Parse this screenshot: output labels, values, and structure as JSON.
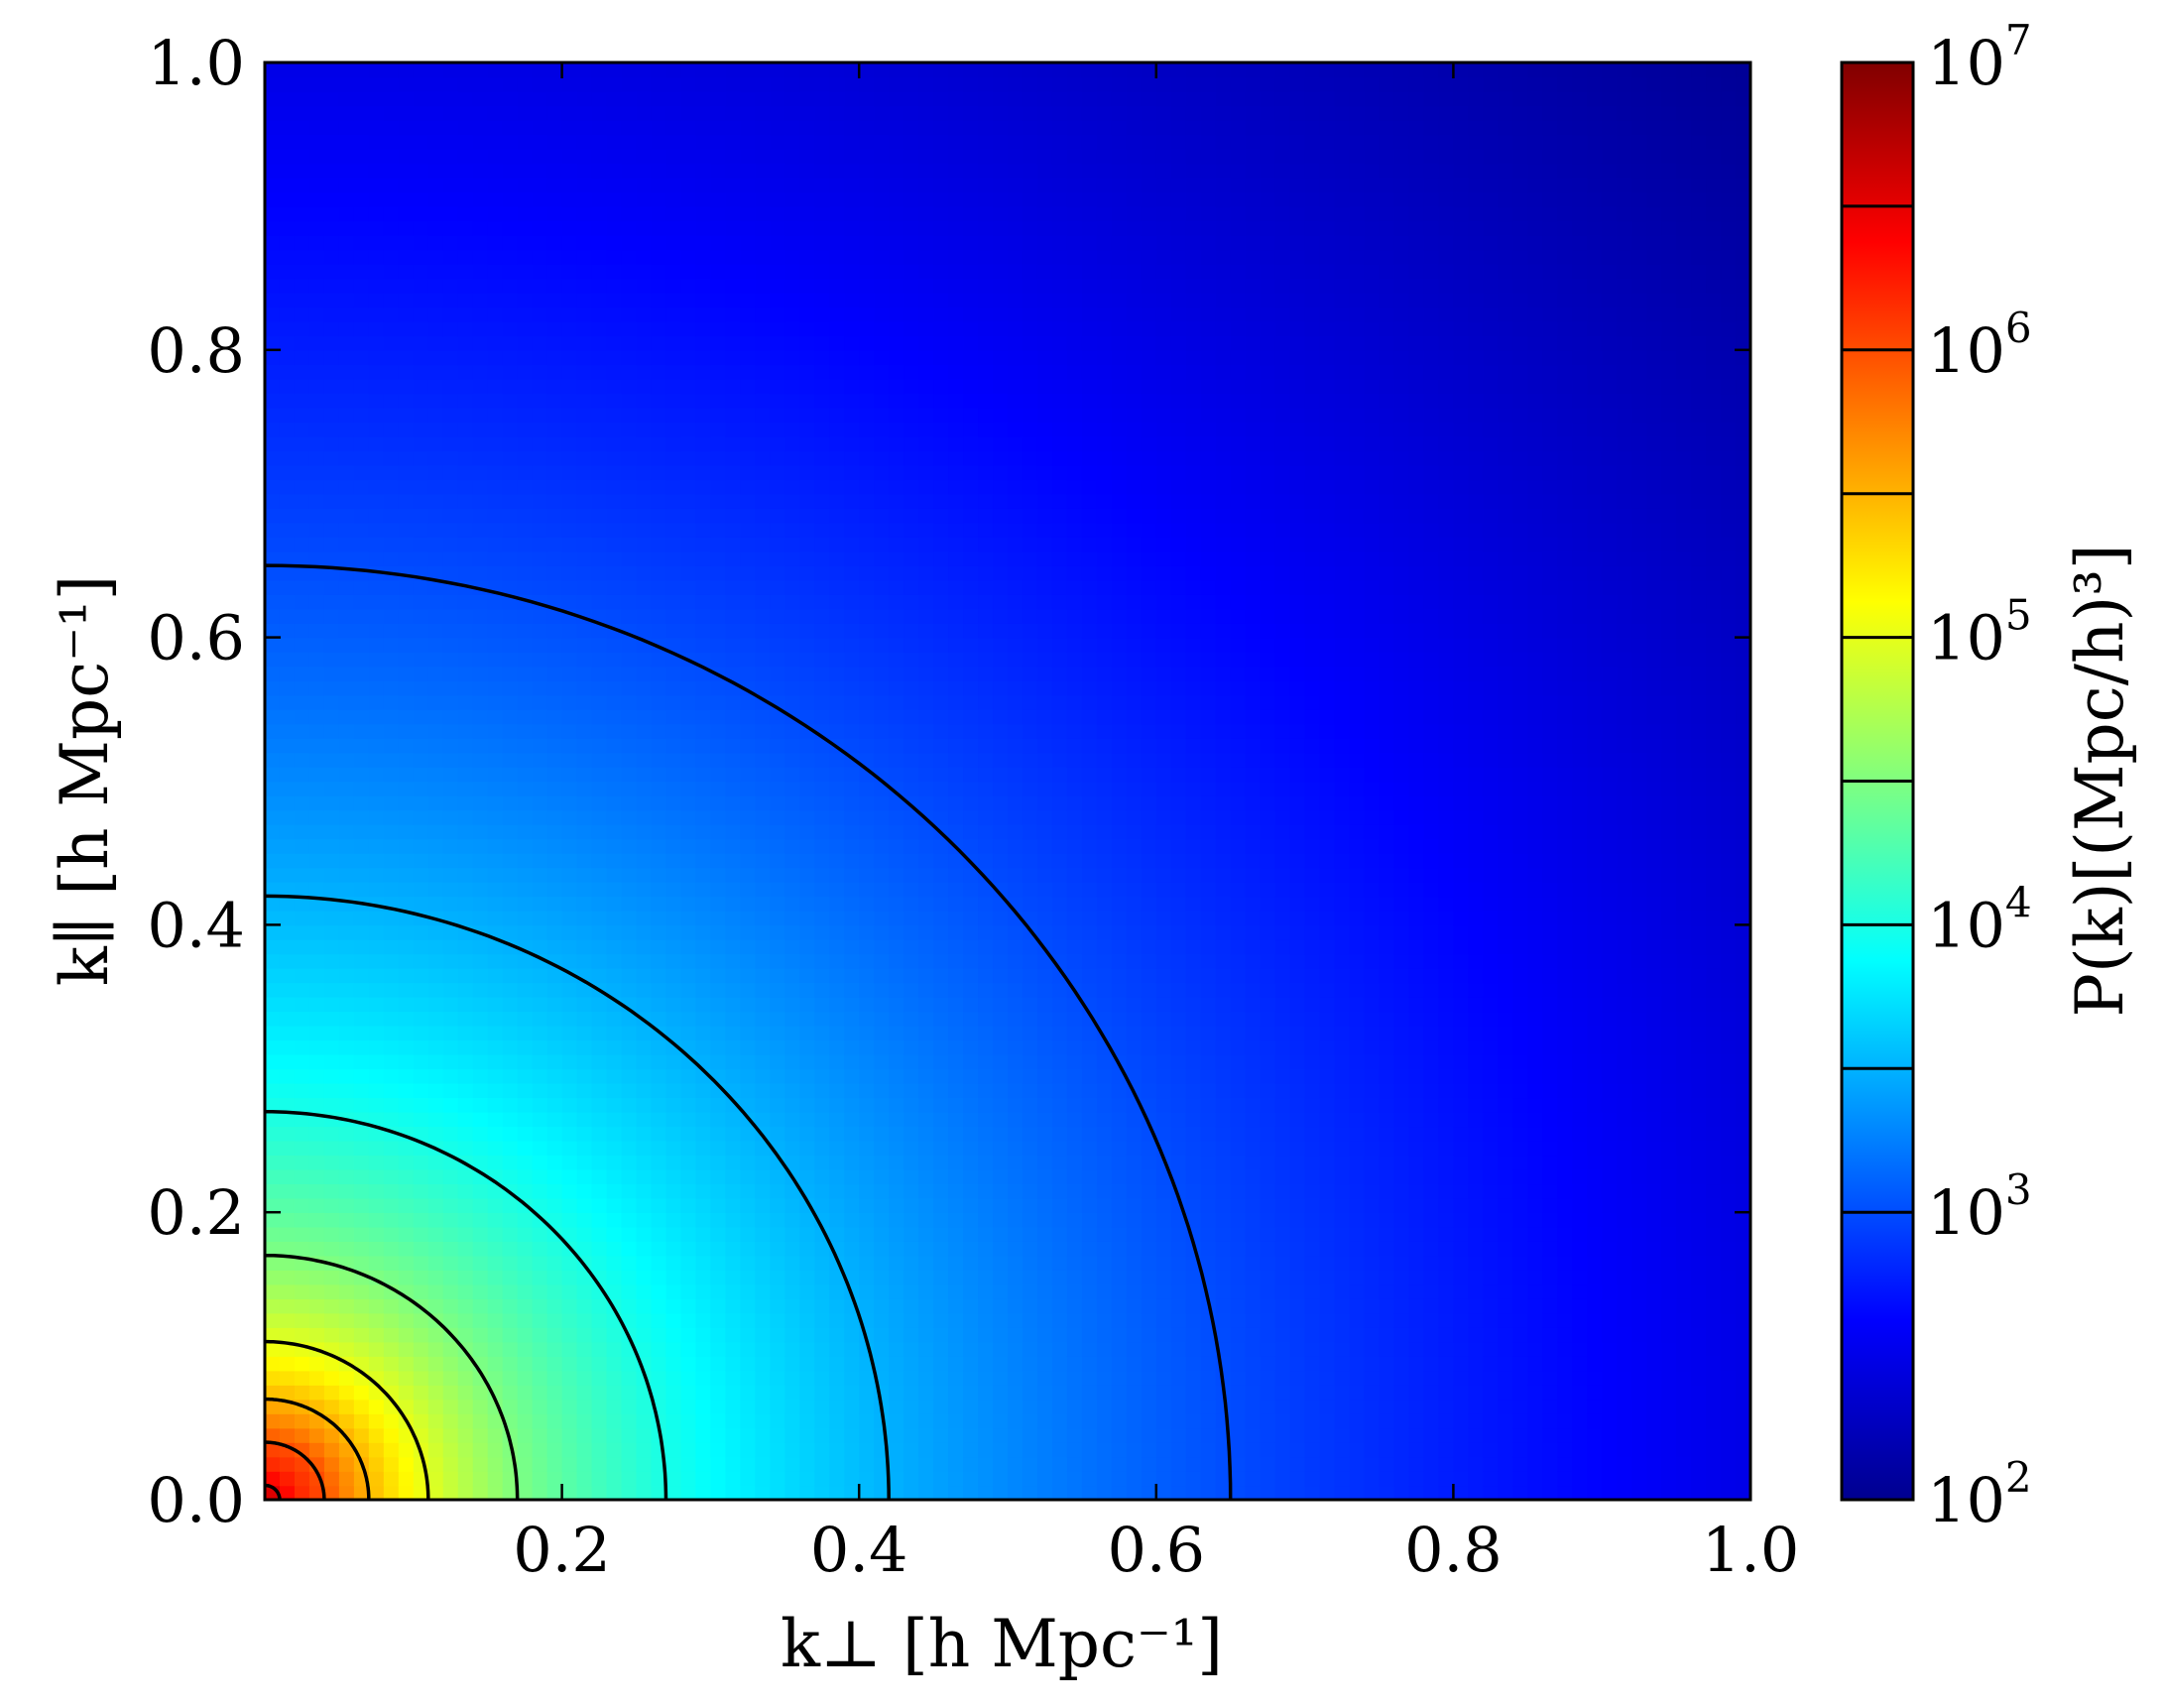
{
  "chart_data": {
    "type": "heatmap",
    "title": "",
    "xlabel": "k⊥ [h Mpc⁻¹]",
    "ylabel": "k∥ [h Mpc⁻¹]",
    "colorbar_label": "P(k)[(Mpc/h)³]",
    "xlim": [
      0.0,
      1.0
    ],
    "ylim": [
      0.0,
      1.0
    ],
    "x_ticks": [
      "0.2",
      "0.4",
      "0.6",
      "0.8",
      "1.0"
    ],
    "y_ticks": [
      "0.0",
      "0.2",
      "0.4",
      "0.6",
      "0.8",
      "1.0"
    ],
    "colorbar_scale": "log",
    "colorbar_range": [
      100,
      10000000
    ],
    "colorbar_ticks": [
      {
        "value": 100,
        "base": "10",
        "exp": "2"
      },
      {
        "value": 1000,
        "base": "10",
        "exp": "3"
      },
      {
        "value": 10000,
        "base": "10",
        "exp": "4"
      },
      {
        "value": 100000,
        "base": "10",
        "exp": "5"
      },
      {
        "value": 1000000,
        "base": "10",
        "exp": "6"
      },
      {
        "value": 10000000,
        "base": "10",
        "exp": "7"
      }
    ],
    "colormap": "jet",
    "grid": false,
    "contour_levels": [
      1000,
      3162,
      10000,
      31623,
      100000,
      316228,
      1000000,
      3162278
    ],
    "contour_radius_at_ky0": [
      0.65,
      0.42,
      0.27,
      0.17,
      0.11,
      0.07,
      0.04,
      0.01
    ]
  }
}
